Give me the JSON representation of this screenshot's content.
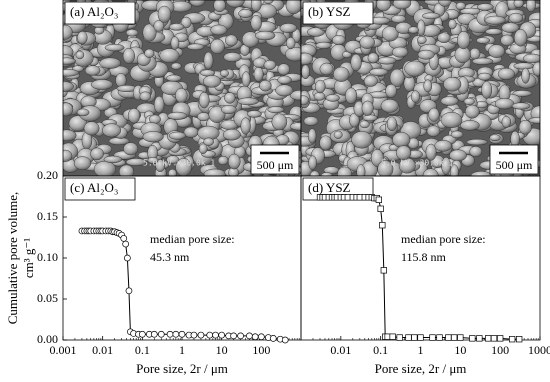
{
  "images": [
    {
      "label": "(a) Al₂O₃",
      "scale_bar": "500 μm",
      "imprint": "5.0 kV ×30.0k 1"
    },
    {
      "label": "(b) YSZ",
      "scale_bar": "500 μm",
      "imprint": "5.0 kV ×30.0k 1"
    }
  ],
  "chart_data": [
    {
      "type": "line",
      "label": "(c) Al₂O₃",
      "annotation": [
        "median pore size:",
        "45.3 nm"
      ],
      "xlabel": "Pore size, 2r / μm",
      "ylabel": [
        "Cumulative pore volume,",
        "cm³ g⁻¹"
      ],
      "log_x": true,
      "xlim": [
        0.001,
        1000
      ],
      "xticks": [
        0.001,
        0.01,
        0.1,
        1,
        10,
        100
      ],
      "ylim": [
        0,
        0.2
      ],
      "yticks": [
        {
          "value": 0,
          "label": "0.00"
        },
        {
          "value": 0.05,
          "label": "0.05"
        },
        {
          "value": 0.1,
          "label": "0.10"
        },
        {
          "value": 0.15,
          "label": "0.15"
        },
        {
          "value": 0.2,
          "label": "0.20"
        }
      ],
      "marker": "circle",
      "color": "#000000",
      "x": [
        0.003,
        0.0035,
        0.004,
        0.0045,
        0.005,
        0.006,
        0.007,
        0.008,
        0.009,
        0.01,
        0.012,
        0.014,
        0.016,
        0.018,
        0.02,
        0.023,
        0.026,
        0.03,
        0.034,
        0.038,
        0.042,
        0.046,
        0.05,
        0.06,
        0.08,
        0.1,
        0.15,
        0.2,
        0.3,
        0.5,
        0.7,
        1,
        1.5,
        2,
        3,
        5,
        7,
        10,
        15,
        20,
        30,
        50,
        70,
        100,
        150,
        200,
        300,
        400
      ],
      "values": [
        0.133,
        0.133,
        0.133,
        0.133,
        0.133,
        0.133,
        0.133,
        0.133,
        0.133,
        0.133,
        0.133,
        0.133,
        0.133,
        0.132,
        0.132,
        0.131,
        0.13,
        0.128,
        0.124,
        0.117,
        0.1,
        0.06,
        0.01,
        0.008,
        0.007,
        0.007,
        0.007,
        0.007,
        0.007,
        0.007,
        0.007,
        0.007,
        0.006,
        0.006,
        0.006,
        0.006,
        0.006,
        0.006,
        0.005,
        0.005,
        0.005,
        0.005,
        0.004,
        0.004,
        0.003,
        0.002,
        0.001,
        0
      ]
    },
    {
      "type": "line",
      "label": "(d) YSZ",
      "annotation": [
        "median pore size:",
        "115.8 nm"
      ],
      "xlabel": "Pore size, 2r / μm",
      "log_x": true,
      "xlim": [
        0.001,
        1000
      ],
      "xticks": [
        0.01,
        0.1,
        1,
        10,
        100,
        1000
      ],
      "ylim": [
        0,
        0.2
      ],
      "marker": "square",
      "color": "#000000",
      "x": [
        0.003,
        0.0035,
        0.004,
        0.005,
        0.006,
        0.007,
        0.008,
        0.01,
        0.012,
        0.015,
        0.02,
        0.025,
        0.03,
        0.04,
        0.05,
        0.06,
        0.07,
        0.08,
        0.09,
        0.1,
        0.11,
        0.12,
        0.13,
        0.15,
        0.2,
        0.3,
        0.5,
        0.7,
        1,
        2,
        3,
        5,
        7,
        10,
        20,
        30,
        50,
        70,
        100,
        200,
        300
      ],
      "values": [
        0.174,
        0.174,
        0.174,
        0.174,
        0.174,
        0.174,
        0.174,
        0.174,
        0.174,
        0.174,
        0.174,
        0.174,
        0.174,
        0.174,
        0.174,
        0.174,
        0.173,
        0.173,
        0.171,
        0.16,
        0.14,
        0.085,
        0.004,
        0.004,
        0.004,
        0.003,
        0.003,
        0.003,
        0.003,
        0.003,
        0.003,
        0.003,
        0.003,
        0.003,
        0.002,
        0.002,
        0.002,
        0.002,
        0.002,
        0.001,
        0.001
      ]
    }
  ]
}
